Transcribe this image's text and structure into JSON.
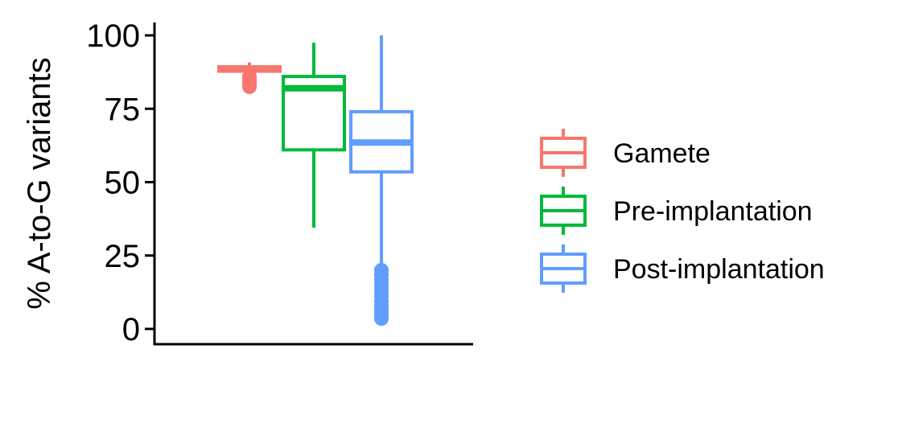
{
  "chart_data": {
    "type": "box",
    "title": "",
    "xlabel": "",
    "ylabel": "% A-to-G variants",
    "ylim": [
      0,
      100
    ],
    "yticks": [
      0,
      25,
      50,
      75,
      100
    ],
    "ytick_labels": [
      "0",
      "25",
      "50",
      "75",
      "100"
    ],
    "grid": false,
    "legend_position": "right",
    "series": [
      {
        "name": "Gamete",
        "color": "#F8766D",
        "whisker_low": 86.5,
        "q1": 87.8,
        "median": 88.5,
        "q3": 89.3,
        "whisker_high": 90.8,
        "outliers": [
          82.5,
          83.3,
          84.0,
          84.8,
          85.4,
          86.0
        ]
      },
      {
        "name": "Pre-implantation",
        "color": "#00BA38",
        "whisker_low": 34.5,
        "q1": 61.0,
        "median": 82.0,
        "q3": 86.0,
        "whisker_high": 97.5,
        "outliers": []
      },
      {
        "name": "Post-implantation",
        "color": "#619CFF",
        "whisker_low": 21.0,
        "q1": 53.5,
        "median": 63.5,
        "q3": 74.0,
        "whisker_high": 100.0,
        "outliers": [
          3.5,
          5.0,
          6.5,
          8.0,
          9.5,
          11.0,
          12.5,
          14.0,
          15.5,
          17.0,
          18.5,
          20.0
        ]
      }
    ]
  }
}
